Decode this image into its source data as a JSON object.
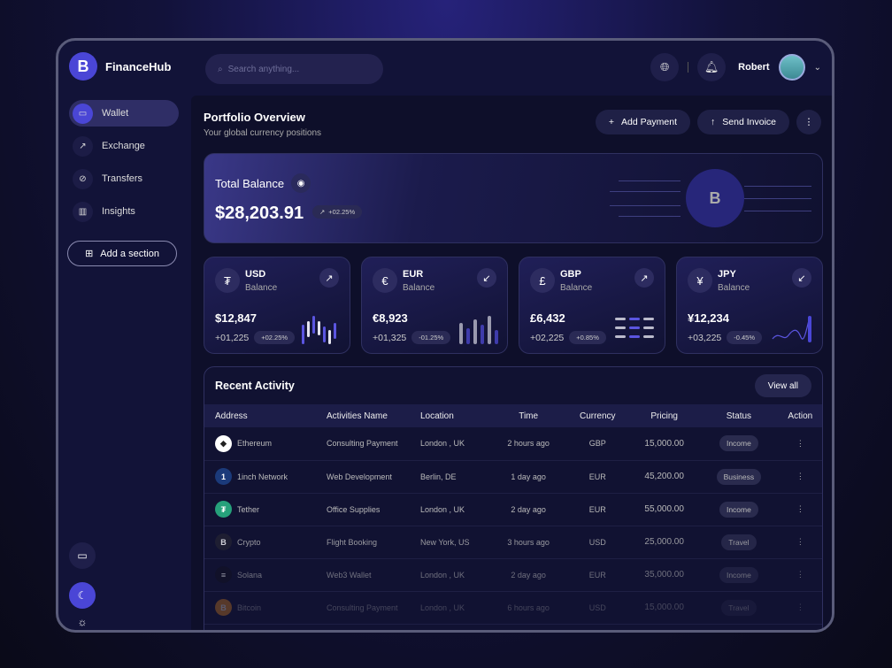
{
  "app": {
    "name": "FinanceHub",
    "logo_letter": "B"
  },
  "search": {
    "placeholder": "Search anything..."
  },
  "header": {
    "user_name": "Robert"
  },
  "sidebar": {
    "items": [
      {
        "label": "Wallet",
        "icon": "wallet-icon",
        "active": true
      },
      {
        "label": "Exchange",
        "icon": "trend-up-icon"
      },
      {
        "label": "Transfers",
        "icon": "transfer-icon"
      },
      {
        "label": "Insights",
        "icon": "chart-icon"
      }
    ],
    "add_section": "Add a section"
  },
  "page": {
    "title": "Portfolio Overview",
    "subtitle": "Your global currency positions",
    "add_payment": "Add Payment",
    "send_invoice": "Send Invoice"
  },
  "total": {
    "label": "Total Balance",
    "value": "$28,203.91",
    "change": "+02.25%"
  },
  "currencies": [
    {
      "code": "USD",
      "label": "Balance",
      "symbol": "₮",
      "value": "$12,847",
      "delta": "+01,225",
      "pct": "+02.25%",
      "direction": "up"
    },
    {
      "code": "EUR",
      "label": "Balance",
      "symbol": "€",
      "value": "€8,923",
      "delta": "+01,325",
      "pct": "-01.25%",
      "direction": "down"
    },
    {
      "code": "GBP",
      "label": "Balance",
      "symbol": "£",
      "value": "£6,432",
      "delta": "+02,225",
      "pct": "+0.85%",
      "direction": "up"
    },
    {
      "code": "JPY",
      "label": "Balance",
      "symbol": "¥",
      "value": "¥12,234",
      "delta": "+03,225",
      "pct": "-0.45%",
      "direction": "down"
    }
  ],
  "activity": {
    "title": "Recent Activity",
    "view_all": "View all",
    "columns": [
      "Address",
      "Activities Name",
      "Location",
      "Time",
      "Currency",
      "Pricing",
      "Status",
      "Action"
    ],
    "rows": [
      {
        "address": "Ethereum",
        "activity": "Consulting Payment",
        "location": "London , UK",
        "time": "2 hours ago",
        "currency": "GBP",
        "pricing": "15,000.00",
        "status": "Income",
        "color": "#ffffff",
        "glyph": "◆"
      },
      {
        "address": "1inch Network",
        "activity": "Web Development",
        "location": "Berlin, DE",
        "time": "1 day ago",
        "currency": "EUR",
        "pricing": "45,200.00",
        "status": "Business",
        "color": "#1b3a7a",
        "glyph": "1"
      },
      {
        "address": "Tether",
        "activity": "Office Supplies",
        "location": "London , UK",
        "time": "2 day ago",
        "currency": "EUR",
        "pricing": "55,000.00",
        "status": "Income",
        "color": "#26a17b",
        "glyph": "₮"
      },
      {
        "address": "Crypto",
        "activity": "Flight Booking",
        "location": "New York, US",
        "time": "3 hours ago",
        "currency": "USD",
        "pricing": "25,000.00",
        "status": "Travel",
        "color": "#222233",
        "glyph": "B"
      },
      {
        "address": "Solana",
        "activity": "Web3 Wallet",
        "location": "London , UK",
        "time": "2 day ago",
        "currency": "EUR",
        "pricing": "35,000.00",
        "status": "Income",
        "color": "#111122",
        "glyph": "≡"
      },
      {
        "address": "Bitcoin",
        "activity": "Consulting Payment",
        "location": "London , UK",
        "time": "6 hours ago",
        "currency": "USD",
        "pricing": "15,000.00",
        "status": "Travel",
        "color": "#f7931a",
        "glyph": "B"
      }
    ]
  }
}
